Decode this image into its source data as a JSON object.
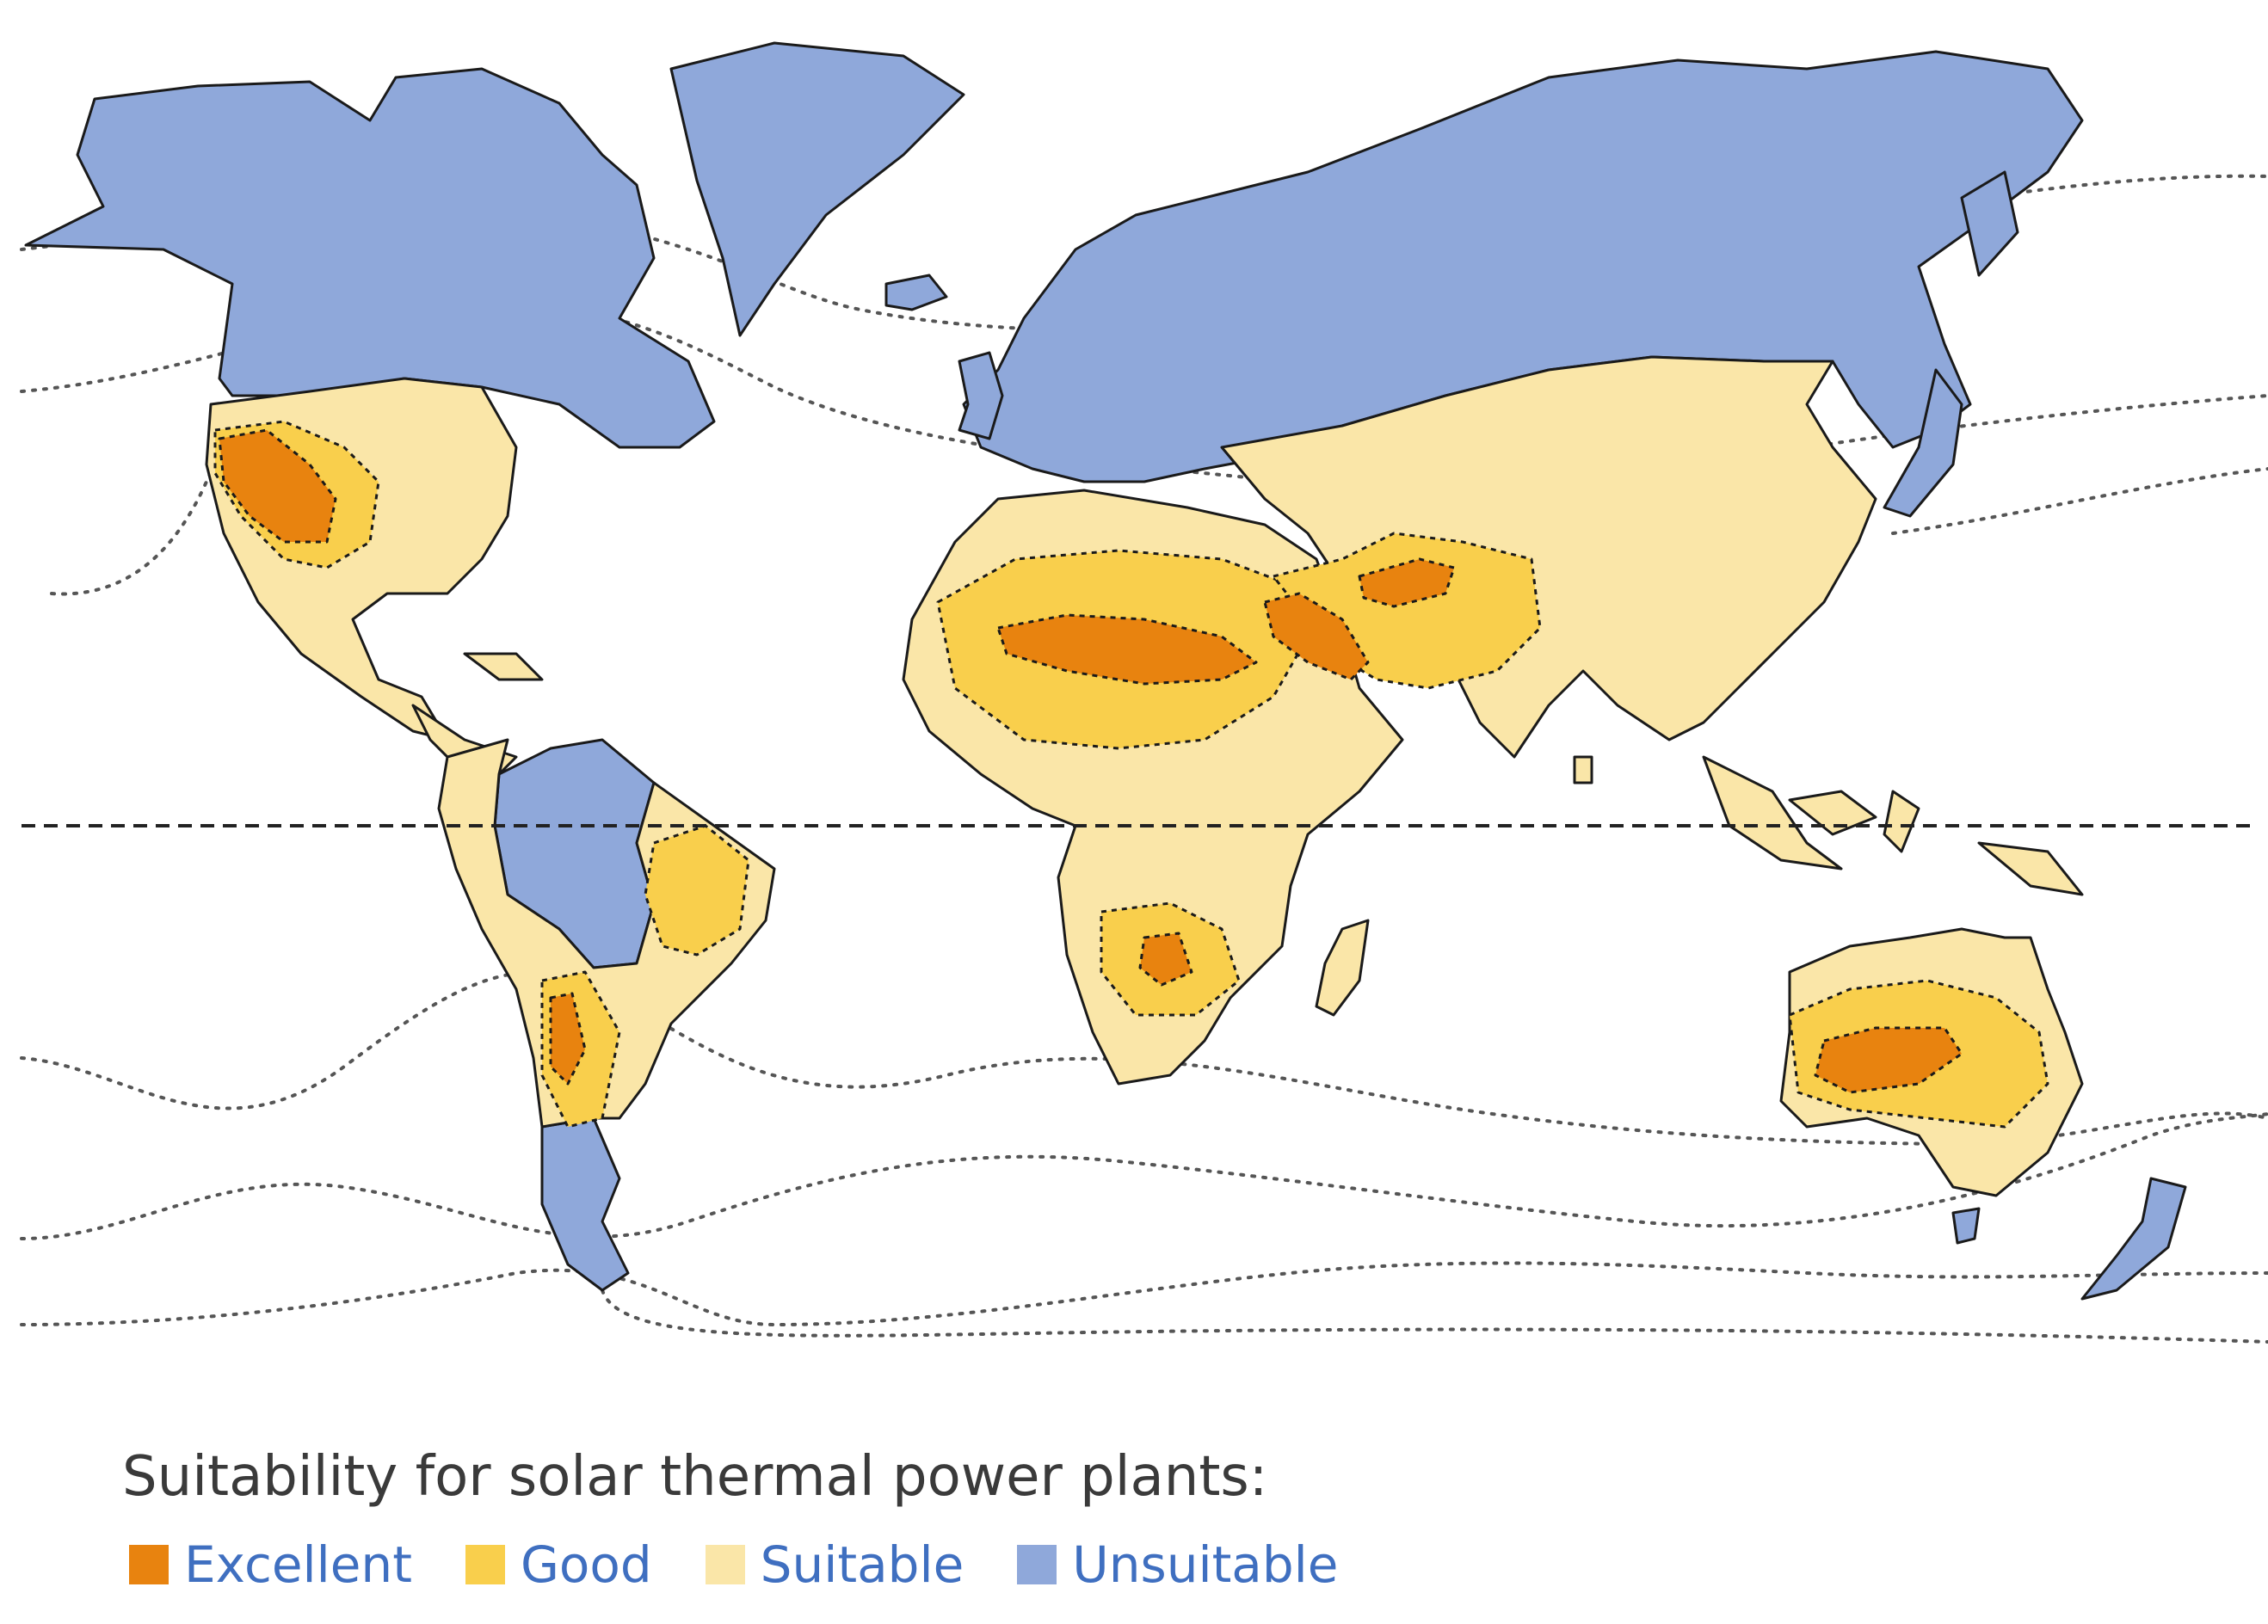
{
  "legend": {
    "title": "Suitability for solar thermal power plants:",
    "items": [
      {
        "label": "Excellent",
        "color": "#e8830f"
      },
      {
        "label": "Good",
        "color": "#f9cf4c"
      },
      {
        "label": "Suitable",
        "color": "#fae6a8"
      },
      {
        "label": "Unsuitable",
        "color": "#8fa8da"
      }
    ],
    "label_color": "#3f6fc0"
  },
  "map": {
    "equator_line": "dashed",
    "contour_lines": "dotted",
    "border_color": "#1a1a1a"
  }
}
